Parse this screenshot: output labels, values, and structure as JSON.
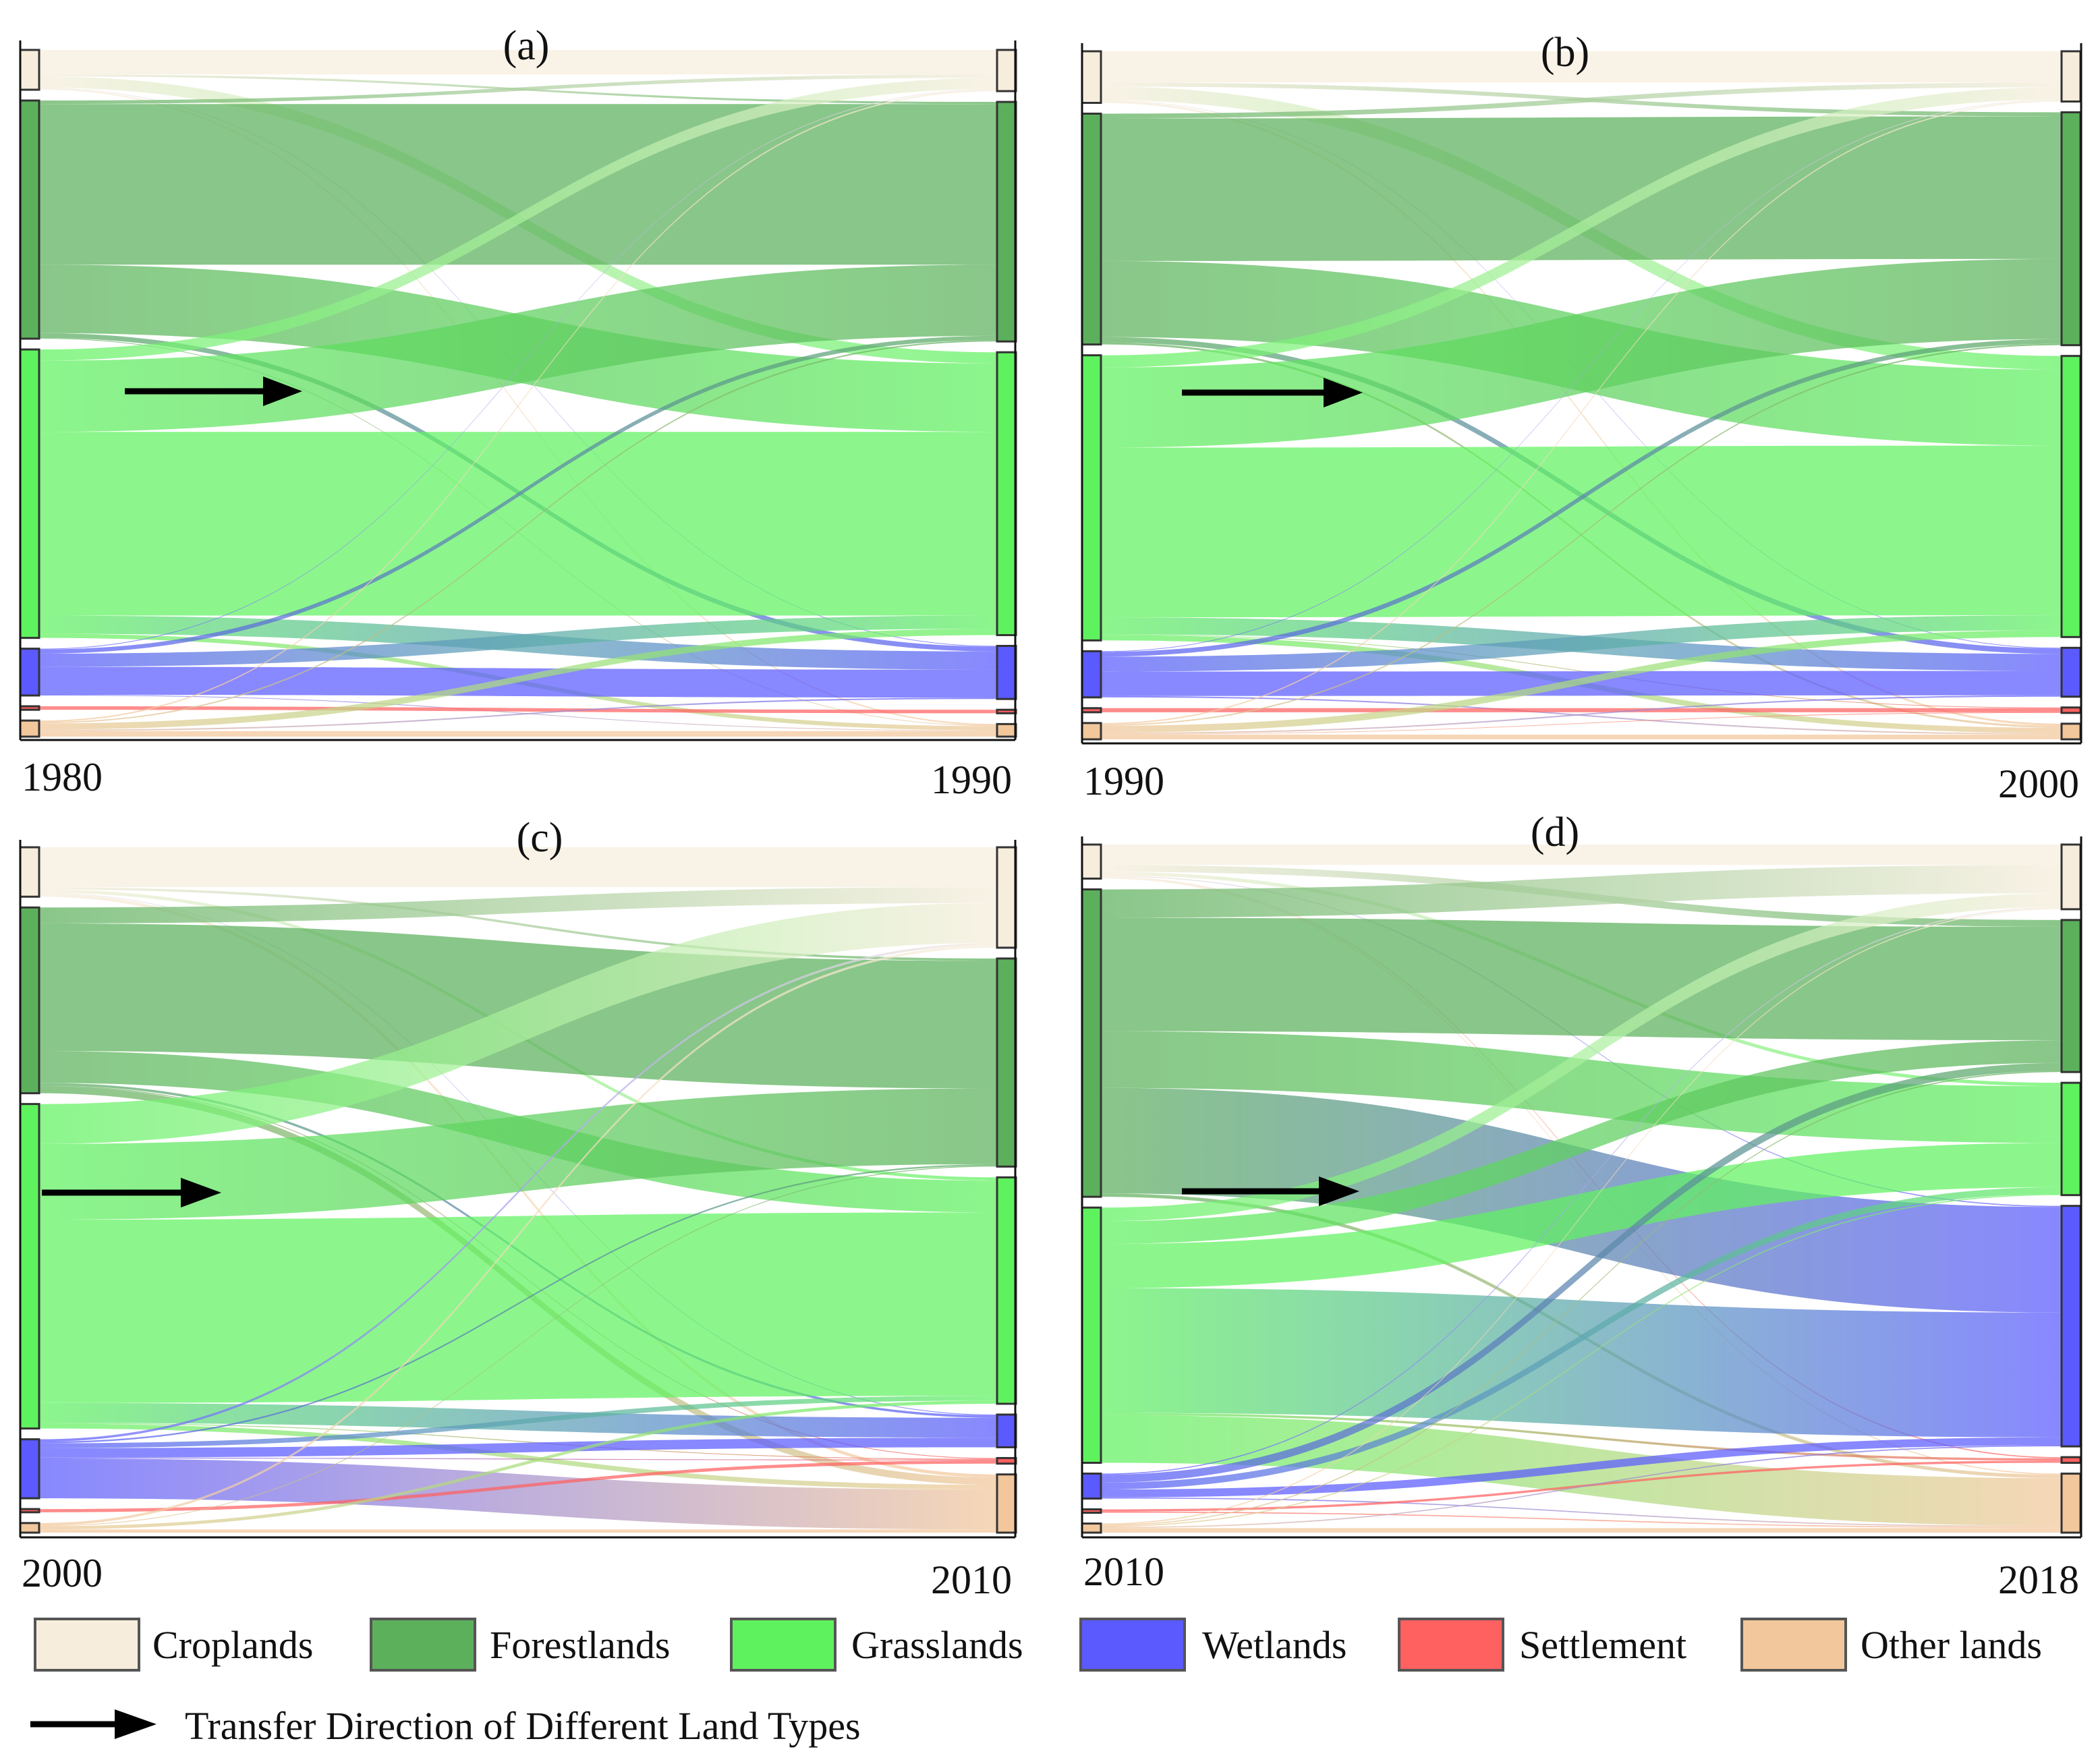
{
  "figure": {
    "legend": {
      "items": [
        {
          "name": "Croplands",
          "color": "#f6eddc"
        },
        {
          "name": "Forestlands",
          "color": "#5cb05c"
        },
        {
          "name": "Grasslands",
          "color": "#5ff25f"
        },
        {
          "name": "Wetlands",
          "color": "#5a5aff"
        },
        {
          "name": "Settlement",
          "color": "#ff6060"
        },
        {
          "name": "Other lands",
          "color": "#f2c79b"
        }
      ],
      "arrow_text": "Transfer Direction of Different Land Types"
    }
  },
  "chart_data": [
    {
      "type": "sankey",
      "panel": "(a)",
      "from_year": "1980",
      "to_year": "1990",
      "categories": [
        "Croplands",
        "Forestlands",
        "Grasslands",
        "Wetlands",
        "Settlement",
        "Other lands"
      ],
      "flows": [
        [
          0.035,
          0.003,
          0.016,
          0.001,
          0.0,
          0.002
        ],
        [
          0.005,
          0.23,
          0.098,
          0.007,
          0.0,
          0.001
        ],
        [
          0.016,
          0.102,
          0.263,
          0.026,
          0.0,
          0.006
        ],
        [
          0.001,
          0.006,
          0.019,
          0.04,
          0.0,
          0.001
        ],
        [
          0.0,
          0.0,
          0.0,
          0.0,
          0.005,
          0.0
        ],
        [
          0.002,
          0.002,
          0.009,
          0.002,
          0.0,
          0.008
        ]
      ]
    },
    {
      "type": "sankey",
      "panel": "(b)",
      "from_year": "1990",
      "to_year": "2000",
      "categories": [
        "Croplands",
        "Forestlands",
        "Grasslands",
        "Wetlands",
        "Settlement",
        "Other lands"
      ],
      "flows": [
        [
          0.046,
          0.006,
          0.02,
          0.001,
          0.0,
          0.003
        ],
        [
          0.007,
          0.21,
          0.112,
          0.008,
          0.0,
          0.003
        ],
        [
          0.018,
          0.118,
          0.25,
          0.025,
          0.001,
          0.008
        ],
        [
          0.001,
          0.007,
          0.022,
          0.036,
          0.0,
          0.002
        ],
        [
          0.0,
          0.0,
          0.0,
          0.0,
          0.006,
          0.0
        ],
        [
          0.002,
          0.002,
          0.01,
          0.002,
          0.001,
          0.007
        ]
      ]
    },
    {
      "type": "sankey",
      "panel": "(c)",
      "from_year": "2000",
      "to_year": "2010",
      "categories": [
        "Croplands",
        "Forestlands",
        "Grasslands",
        "Wetlands",
        "Settlement",
        "Other lands"
      ],
      "flows": [
        [
          0.05,
          0.003,
          0.004,
          0.001,
          0.0,
          0.004
        ],
        [
          0.02,
          0.16,
          0.04,
          0.003,
          0.001,
          0.009
        ],
        [
          0.05,
          0.095,
          0.23,
          0.025,
          0.001,
          0.006
        ],
        [
          0.003,
          0.002,
          0.006,
          0.012,
          0.001,
          0.05
        ],
        [
          0.0,
          0.0,
          0.0,
          0.0,
          0.004,
          0.0
        ],
        [
          0.003,
          0.001,
          0.004,
          0.0,
          0.0,
          0.004
        ]
      ]
    },
    {
      "type": "sankey",
      "panel": "(d)",
      "from_year": "2010",
      "to_year": "2018",
      "categories": [
        "Croplands",
        "Forestlands",
        "Grasslands",
        "Wetlands",
        "Settlement",
        "Other lands"
      ],
      "flows": [
        [
          0.018,
          0.006,
          0.003,
          0.001,
          0.001,
          0.001
        ],
        [
          0.025,
          0.1,
          0.05,
          0.093,
          0.0,
          0.003
        ],
        [
          0.012,
          0.02,
          0.039,
          0.11,
          0.002,
          0.042
        ],
        [
          0.001,
          0.007,
          0.006,
          0.007,
          0.0,
          0.001
        ],
        [
          0.0,
          0.0,
          0.0,
          0.0,
          0.002,
          0.001
        ],
        [
          0.001,
          0.001,
          0.001,
          0.001,
          0.0,
          0.004
        ]
      ]
    }
  ]
}
